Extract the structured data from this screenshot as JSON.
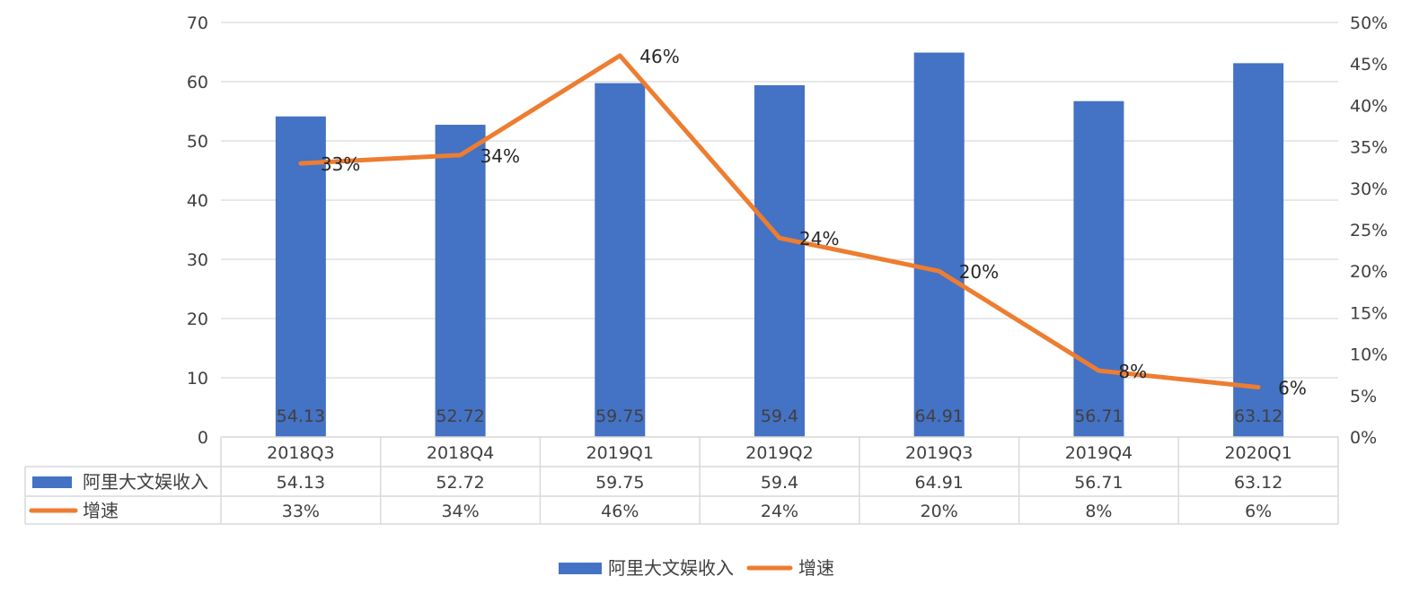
{
  "chart_data": {
    "type": "bar+line",
    "categories": [
      "2018Q3",
      "2018Q4",
      "2019Q1",
      "2019Q2",
      "2019Q3",
      "2019Q4",
      "2020Q1"
    ],
    "series": [
      {
        "name": "阿里大文娱收入",
        "type": "bar",
        "axis": "left",
        "values": [
          54.13,
          52.72,
          59.75,
          59.4,
          64.91,
          56.71,
          63.12
        ],
        "labels": [
          "54.13",
          "52.72",
          "59.75",
          "59.4",
          "64.91",
          "56.71",
          "63.12"
        ],
        "color": "#4472C4"
      },
      {
        "name": "增速",
        "type": "line",
        "axis": "right",
        "values": [
          33,
          34,
          46,
          24,
          20,
          8,
          6
        ],
        "labels": [
          "33%",
          "34%",
          "46%",
          "24%",
          "20%",
          "8%",
          "6%"
        ],
        "color": "#ED7D31"
      }
    ],
    "y_left": {
      "min": 0,
      "max": 70,
      "ticks": [
        "0",
        "10",
        "20",
        "30",
        "40",
        "50",
        "60",
        "70"
      ]
    },
    "y_right": {
      "min": 0,
      "max": 50,
      "ticks": [
        "0%",
        "5%",
        "10%",
        "15%",
        "20%",
        "25%",
        "30%",
        "35%",
        "40%",
        "45%",
        "50%"
      ]
    },
    "grid": true,
    "data_table": true,
    "legend_position": "bottom",
    "title": ""
  }
}
